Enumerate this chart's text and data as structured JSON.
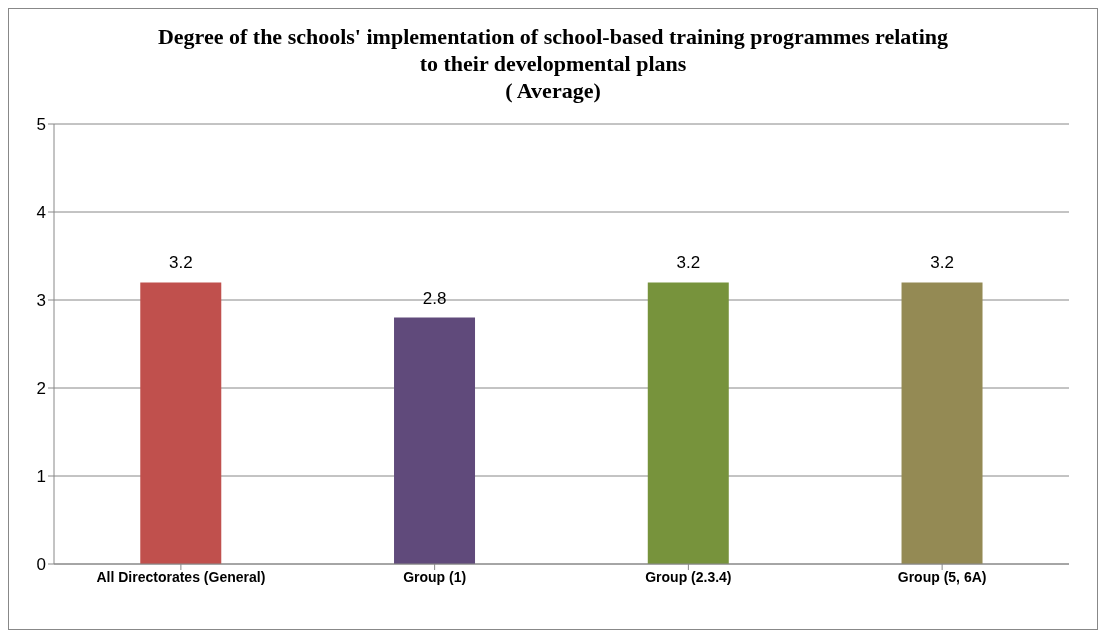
{
  "chart_data": {
    "type": "bar",
    "title": "Degree of the schools' implementation of school-based training programmes relating to their developmental plans\n( Average)",
    "categories": [
      "All Directorates (General)",
      "Group (1)",
      "Group (2.3.4)",
      "Group (5, 6A)"
    ],
    "values": [
      3.2,
      2.8,
      3.2,
      3.2
    ],
    "colors": [
      "#c0504d",
      "#604a7b",
      "#77933c",
      "#948a54"
    ],
    "ylim": [
      0,
      5
    ],
    "yticks": [
      0,
      1,
      2,
      3,
      4,
      5
    ],
    "grid": "y",
    "data_labels": true
  }
}
